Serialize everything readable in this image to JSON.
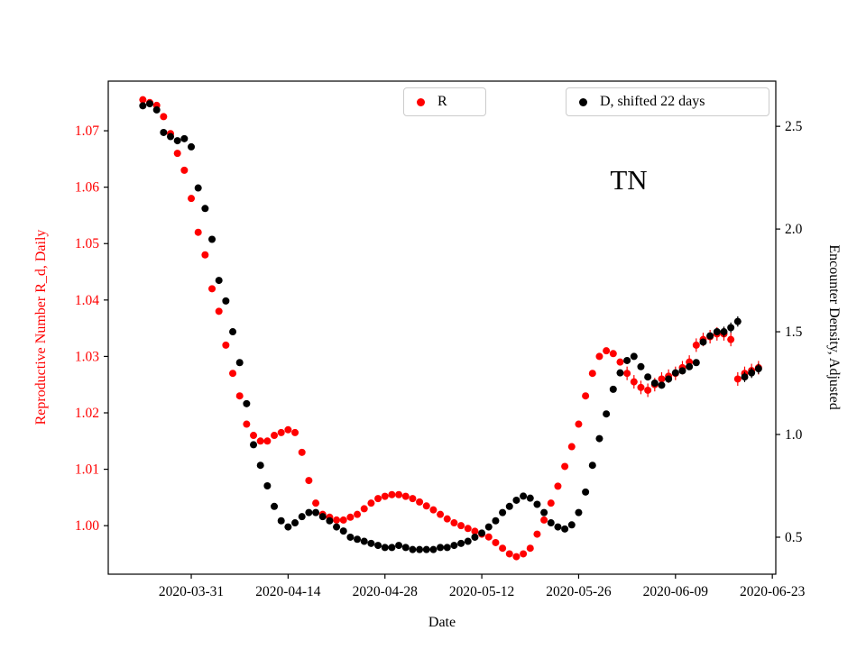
{
  "annotation": {
    "state_label": "TN"
  },
  "legend": {
    "r": {
      "label": "R"
    },
    "d": {
      "label": "D, shifted 22 days"
    }
  },
  "axes": {
    "x_label": "Date",
    "left_label": "Reproductive Number R_d, Daily",
    "right_label": "Encounter Density, Adjusted",
    "x_tick_labels": [
      "2020-03-31",
      "2020-04-14",
      "2020-04-28",
      "2020-05-12",
      "2020-05-26",
      "2020-06-09",
      "2020-06-23"
    ],
    "left_tick_labels": [
      "1.00",
      "1.01",
      "1.02",
      "1.03",
      "1.04",
      "1.05",
      "1.06",
      "1.07"
    ],
    "right_tick_labels": [
      "0.5",
      "1.0",
      "1.5",
      "2.0",
      "2.5"
    ]
  },
  "colors": {
    "r": "#ff0000",
    "d": "#000000",
    "spine": "#000000",
    "legend_border": "#cccccc"
  },
  "chart_data": {
    "type": "scatter",
    "title": "TN",
    "xlabel": "Date",
    "ylabel_left": "Reproductive Number R_d, Daily",
    "ylabel_right": "Encounter Density, Adjusted",
    "x_start_date": "2020-03-24",
    "x_unit": "days",
    "xlim_days": [
      -5,
      91.5
    ],
    "left_ylim": [
      0.9914,
      1.0788
    ],
    "right_ylim": [
      0.32,
      2.72
    ],
    "x_tick_days": [
      7,
      21,
      35,
      49,
      63,
      77,
      91
    ],
    "x_tick_labels": [
      "2020-03-31",
      "2020-04-14",
      "2020-04-28",
      "2020-05-12",
      "2020-05-26",
      "2020-06-09",
      "2020-06-23"
    ],
    "left_ticks": [
      1.0,
      1.01,
      1.02,
      1.03,
      1.04,
      1.05,
      1.06,
      1.07
    ],
    "left_tick_labels": [
      "1.00",
      "1.01",
      "1.02",
      "1.03",
      "1.04",
      "1.05",
      "1.06",
      "1.07"
    ],
    "right_ticks": [
      0.5,
      1.0,
      1.5,
      2.0,
      2.5
    ],
    "right_tick_labels": [
      "0.5",
      "1.0",
      "1.5",
      "2.0",
      "2.5"
    ],
    "grid": false,
    "legend_position": "upper center, two boxes",
    "series": [
      {
        "name": "R",
        "axis": "left",
        "color": "#ff0000",
        "marker": "circle",
        "error_bar": {
          "start_index": 70,
          "half_width": 0.0012
        },
        "values": [
          1.0755,
          1.075,
          1.0745,
          1.0725,
          1.0695,
          1.066,
          1.063,
          1.058,
          1.052,
          1.048,
          1.042,
          1.038,
          1.032,
          1.027,
          1.023,
          1.018,
          1.016,
          1.015,
          1.015,
          1.016,
          1.0165,
          1.017,
          1.0165,
          1.013,
          1.008,
          1.004,
          1.002,
          1.0015,
          1.001,
          1.001,
          1.0015,
          1.002,
          1.003,
          1.004,
          1.0048,
          1.0052,
          1.0055,
          1.0055,
          1.0052,
          1.0048,
          1.0042,
          1.0035,
          1.0028,
          1.002,
          1.0012,
          1.0005,
          1.0,
          0.9995,
          0.999,
          0.9985,
          0.998,
          0.997,
          0.996,
          0.995,
          0.9945,
          0.995,
          0.996,
          0.9985,
          1.001,
          1.004,
          1.007,
          1.0105,
          1.014,
          1.018,
          1.023,
          1.027,
          1.03,
          1.031,
          1.0305,
          1.029,
          1.027,
          1.0255,
          1.0245,
          1.024,
          1.025,
          1.026,
          1.0265,
          1.027,
          1.028,
          1.029,
          1.032,
          1.033,
          1.0335,
          1.034,
          1.034,
          1.033,
          1.026,
          1.027,
          1.0275,
          1.028
        ]
      },
      {
        "name": "D, shifted 22 days",
        "axis": "right",
        "color": "#000000",
        "marker": "circle",
        "error_bar": {
          "start_index": 84,
          "half_width": 0.025
        },
        "values": [
          2.6,
          2.61,
          2.58,
          2.47,
          2.45,
          2.43,
          2.44,
          2.4,
          2.2,
          2.1,
          1.95,
          1.75,
          1.65,
          1.5,
          1.35,
          1.15,
          0.95,
          0.85,
          0.75,
          0.65,
          0.58,
          0.55,
          0.57,
          0.6,
          0.62,
          0.62,
          0.6,
          0.58,
          0.55,
          0.53,
          0.5,
          0.49,
          0.48,
          0.47,
          0.46,
          0.45,
          0.45,
          0.46,
          0.45,
          0.44,
          0.44,
          0.44,
          0.44,
          0.45,
          0.45,
          0.46,
          0.47,
          0.48,
          0.5,
          0.52,
          0.55,
          0.58,
          0.62,
          0.65,
          0.68,
          0.7,
          0.69,
          0.66,
          0.62,
          0.57,
          0.55,
          0.54,
          0.56,
          0.62,
          0.72,
          0.85,
          0.98,
          1.1,
          1.22,
          1.3,
          1.36,
          1.38,
          1.33,
          1.28,
          1.25,
          1.24,
          1.27,
          1.3,
          1.31,
          1.33,
          1.35,
          1.45,
          1.48,
          1.5,
          1.5,
          1.52,
          1.55,
          1.28,
          1.3,
          1.32
        ]
      }
    ]
  }
}
